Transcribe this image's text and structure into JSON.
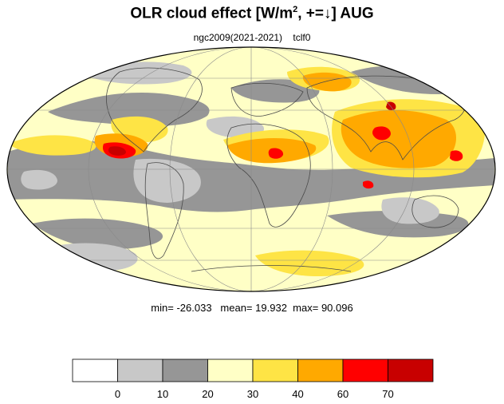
{
  "title": {
    "prefix": "OLR cloud effect [W/m",
    "superscript": "2",
    "suffix": ", +=↓]  AUG"
  },
  "subtitle": {
    "left": "ngc2009(2021-2021)",
    "right": "tclf0"
  },
  "stats": {
    "min_label": "min=",
    "min": "-26.033",
    "mean_label": "mean=",
    "mean": "19.932",
    "max_label": "max=",
    "max": "90.096"
  },
  "colorbar": {
    "colors": [
      "#ffffff",
      "#c8c8c8",
      "#969696",
      "#ffffc6",
      "#fee445",
      "#ffa900",
      "#ff0000",
      "#c80000"
    ],
    "tick_labels": [
      "0",
      "10",
      "20",
      "30",
      "40",
      "60",
      "70"
    ]
  },
  "map_colors": {
    "ocean_base": "#ffffc6",
    "land_line": "#4a4a4a",
    "grid_line": "#8a8a8a",
    "outline": "#000000"
  }
}
